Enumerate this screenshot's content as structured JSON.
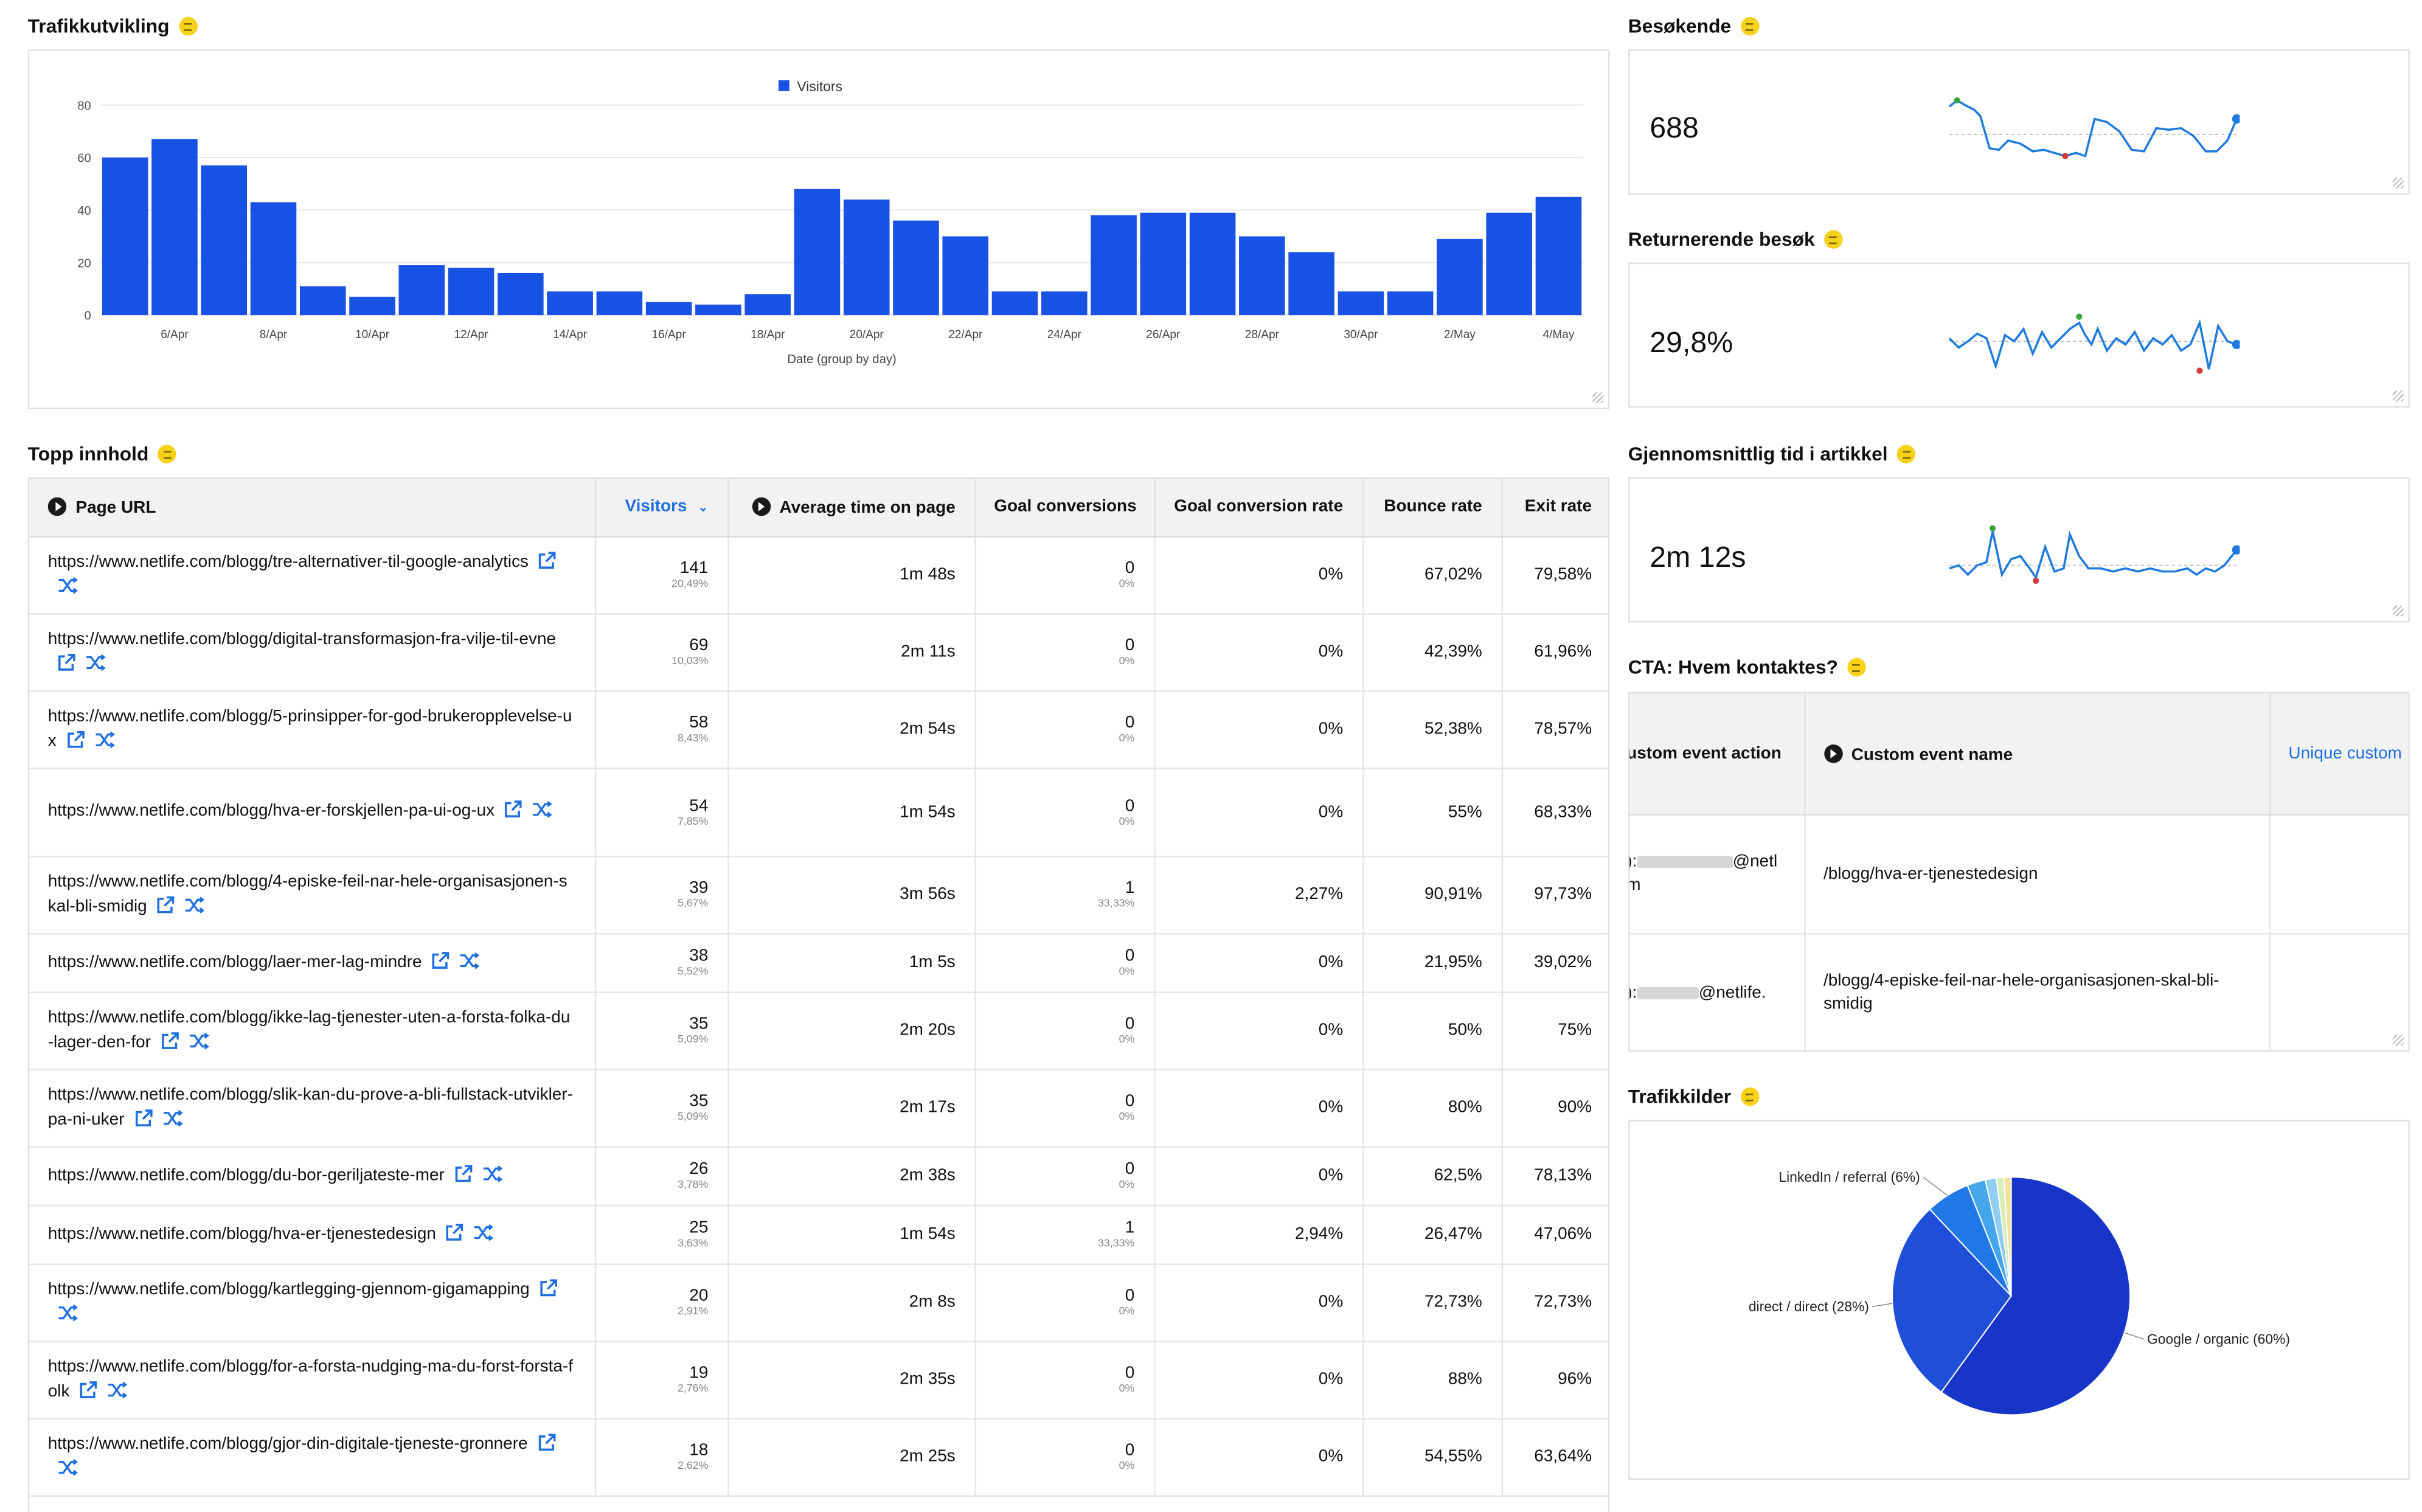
{
  "colors": {
    "bar": "#1752e5",
    "spark": "#1f7ae0",
    "link": "#1f6fe0",
    "info": "#f6d21a",
    "max_marker": "#3aa23a",
    "min_marker": "#d33b3b"
  },
  "traffic": {
    "title": "Trafikkutvikling",
    "chart_data": {
      "type": "bar",
      "legend": "Visitors",
      "xlabel": "Date (group by day)",
      "ylabel": "",
      "ylim": [
        0,
        80
      ],
      "yticks": [
        "0",
        "20",
        "40",
        "60",
        "80"
      ],
      "categories": [
        "5/Apr",
        "6/Apr",
        "7/Apr",
        "8/Apr",
        "9/Apr",
        "10/Apr",
        "11/Apr",
        "12/Apr",
        "13/Apr",
        "14/Apr",
        "15/Apr",
        "16/Apr",
        "17/Apr",
        "18/Apr",
        "19/Apr",
        "20/Apr",
        "21/Apr",
        "22/Apr",
        "23/Apr",
        "24/Apr",
        "25/Apr",
        "26/Apr",
        "27/Apr",
        "28/Apr",
        "29/Apr",
        "30/Apr",
        "1/May",
        "2/May",
        "3/May",
        "4/May"
      ],
      "xticks": [
        "6/Apr",
        "8/Apr",
        "10/Apr",
        "12/Apr",
        "14/Apr",
        "16/Apr",
        "18/Apr",
        "20/Apr",
        "22/Apr",
        "24/Apr",
        "26/Apr",
        "28/Apr",
        "30/Apr",
        "2/May",
        "4/May"
      ],
      "values": [
        60,
        67,
        57,
        43,
        11,
        7,
        19,
        18,
        16,
        9,
        9,
        5,
        4,
        8,
        48,
        44,
        36,
        30,
        9,
        9,
        38,
        39,
        39,
        30,
        24,
        9,
        9,
        29,
        39,
        45
      ]
    }
  },
  "besokende": {
    "title": "Besøkende",
    "value": "688"
  },
  "returnerende": {
    "title": "Returnerende besøk",
    "value": "29,8%"
  },
  "gjennomsnitt": {
    "title": "Gjennomsnittlig tid i artikkel",
    "value": "2m 12s"
  },
  "top": {
    "title": "Topp innhold",
    "headers": {
      "url": "Page URL",
      "visitors": "Visitors",
      "avg_time": "Average time on page",
      "goal_conv": "Goal conversions",
      "goal_rate": "Goal conversion rate",
      "bounce": "Bounce rate",
      "exit": "Exit rate"
    },
    "rows": [
      {
        "url": "https://www.netlife.com/blogg/tre-alternativer-til-google-analytics",
        "visitors": "141",
        "vshare": "20,49%",
        "time": "1m 48s",
        "conv": "0",
        "cshare": "0%",
        "rate": "0%",
        "bounce": "67,02%",
        "exit": "79,58%"
      },
      {
        "url": "https://www.netlife.com/blogg/digital-transformasjon-fra-vilje-til-evne",
        "visitors": "69",
        "vshare": "10,03%",
        "time": "2m 11s",
        "conv": "0",
        "cshare": "0%",
        "rate": "0%",
        "bounce": "42,39%",
        "exit": "61,96%"
      },
      {
        "url": "https://www.netlife.com/blogg/5-prinsipper-for-god-brukeropplevelse-ux",
        "visitors": "58",
        "vshare": "8,43%",
        "time": "2m 54s",
        "conv": "0",
        "cshare": "0%",
        "rate": "0%",
        "bounce": "52,38%",
        "exit": "78,57%"
      },
      {
        "url": "https://www.netlife.com/blogg/hva-er-forskjellen-pa-ui-og-ux",
        "visitors": "54",
        "vshare": "7,85%",
        "time": "1m 54s",
        "conv": "0",
        "cshare": "0%",
        "rate": "0%",
        "bounce": "55%",
        "exit": "68,33%"
      },
      {
        "url": "https://www.netlife.com/blogg/4-episke-feil-nar-hele-organisasjonen-skal-bli-smidig",
        "visitors": "39",
        "vshare": "5,67%",
        "time": "3m 56s",
        "conv": "1",
        "cshare": "33,33%",
        "rate": "2,27%",
        "bounce": "90,91%",
        "exit": "97,73%"
      },
      {
        "url": "https://www.netlife.com/blogg/laer-mer-lag-mindre",
        "visitors": "38",
        "vshare": "5,52%",
        "time": "1m 5s",
        "conv": "0",
        "cshare": "0%",
        "rate": "0%",
        "bounce": "21,95%",
        "exit": "39,02%"
      },
      {
        "url": "https://www.netlife.com/blogg/ikke-lag-tjenester-uten-a-forsta-folka-du-lager-den-for",
        "visitors": "35",
        "vshare": "5,09%",
        "time": "2m 20s",
        "conv": "0",
        "cshare": "0%",
        "rate": "0%",
        "bounce": "50%",
        "exit": "75%"
      },
      {
        "url": "https://www.netlife.com/blogg/slik-kan-du-prove-a-bli-fullstack-utvikler-pa-ni-uker",
        "visitors": "35",
        "vshare": "5,09%",
        "time": "2m 17s",
        "conv": "0",
        "cshare": "0%",
        "rate": "0%",
        "bounce": "80%",
        "exit": "90%"
      },
      {
        "url": "https://www.netlife.com/blogg/du-bor-geriljateste-mer",
        "visitors": "26",
        "vshare": "3,78%",
        "time": "2m 38s",
        "conv": "0",
        "cshare": "0%",
        "rate": "0%",
        "bounce": "62,5%",
        "exit": "78,13%"
      },
      {
        "url": "https://www.netlife.com/blogg/hva-er-tjenestedesign",
        "visitors": "25",
        "vshare": "3,63%",
        "time": "1m 54s",
        "conv": "1",
        "cshare": "33,33%",
        "rate": "2,94%",
        "bounce": "26,47%",
        "exit": "47,06%"
      },
      {
        "url": "https://www.netlife.com/blogg/kartlegging-gjennom-gigamapping",
        "visitors": "20",
        "vshare": "2,91%",
        "time": "2m 8s",
        "conv": "0",
        "cshare": "0%",
        "rate": "0%",
        "bounce": "72,73%",
        "exit": "72,73%"
      },
      {
        "url": "https://www.netlife.com/blogg/for-a-forsta-nudging-ma-du-forst-forsta-folk",
        "visitors": "19",
        "vshare": "2,76%",
        "time": "2m 35s",
        "conv": "0",
        "cshare": "0%",
        "rate": "0%",
        "bounce": "88%",
        "exit": "96%"
      },
      {
        "url": "https://www.netlife.com/blogg/gjor-din-digitale-tjeneste-gronnere",
        "visitors": "18",
        "vshare": "2,62%",
        "time": "2m 25s",
        "conv": "0",
        "cshare": "0%",
        "rate": "0%",
        "bounce": "54,55%",
        "exit": "63,64%"
      }
    ]
  },
  "cta": {
    "title": "CTA: Hvem kontaktes?",
    "headers": {
      "action": "ustom event action",
      "name": "Custom event name",
      "unique": "Unique custom"
    },
    "rows": [
      {
        "action_prefix": "):",
        "action_suffix": "@netl",
        "action_tail": "m",
        "name": "/blogg/hva-er-tjenestedesign"
      },
      {
        "action_prefix": "):",
        "action_suffix": "@netlife.",
        "action_tail": "",
        "name": "/blogg/4-episke-feil-nar-hele-organisasjonen-skal-bli-smidig"
      }
    ]
  },
  "sources": {
    "title": "Trafikkilder",
    "chart_data": {
      "type": "pie",
      "slices": [
        {
          "label": "Google / organic (60%)",
          "value": 60,
          "color": "#1736c9"
        },
        {
          "label": "direct / direct (28%)",
          "value": 28,
          "color": "#1f4fd8"
        },
        {
          "label": "LinkedIn / referral (6%)",
          "value": 6,
          "color": "#1f78e6"
        },
        {
          "label": "",
          "value": 2.5,
          "color": "#46a6ec"
        },
        {
          "label": "",
          "value": 1.5,
          "color": "#8fcdf1"
        },
        {
          "label": "",
          "value": 1,
          "color": "#d8ecb8"
        },
        {
          "label": "",
          "value": 1,
          "color": "#f1e39a"
        }
      ]
    }
  }
}
